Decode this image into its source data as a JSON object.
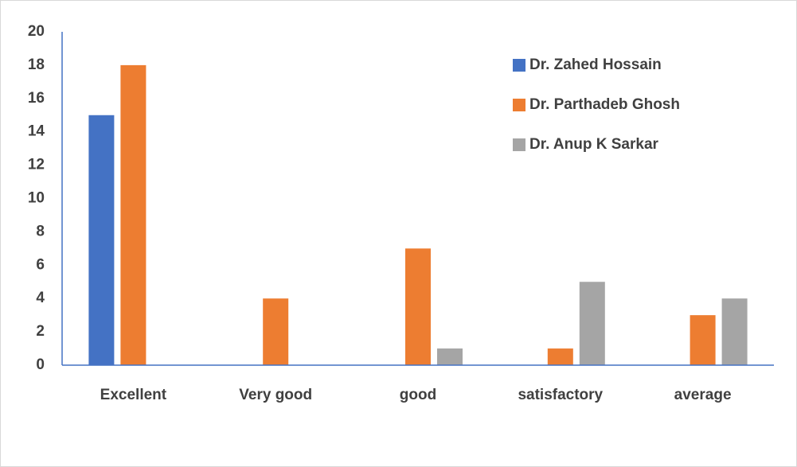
{
  "chart_data": {
    "type": "bar",
    "categories": [
      "Excellent",
      "Very good",
      "good",
      "satisfactory",
      "average"
    ],
    "series": [
      {
        "name": "Dr. Zahed Hossain",
        "color": "#4472c4",
        "values": [
          15,
          0,
          0,
          0,
          0
        ]
      },
      {
        "name": "Dr. Parthadeb Ghosh",
        "color": "#ed7d31",
        "values": [
          18,
          4,
          7,
          1,
          3
        ]
      },
      {
        "name": "Dr. Anup K Sarkar",
        "color": "#a5a5a5",
        "values": [
          0,
          0,
          1,
          5,
          4
        ]
      }
    ],
    "ylim": [
      0,
      20
    ],
    "yticks": [
      0,
      2,
      4,
      6,
      8,
      10,
      12,
      14,
      16,
      18,
      20
    ],
    "grid": false,
    "legend": "top-right"
  }
}
